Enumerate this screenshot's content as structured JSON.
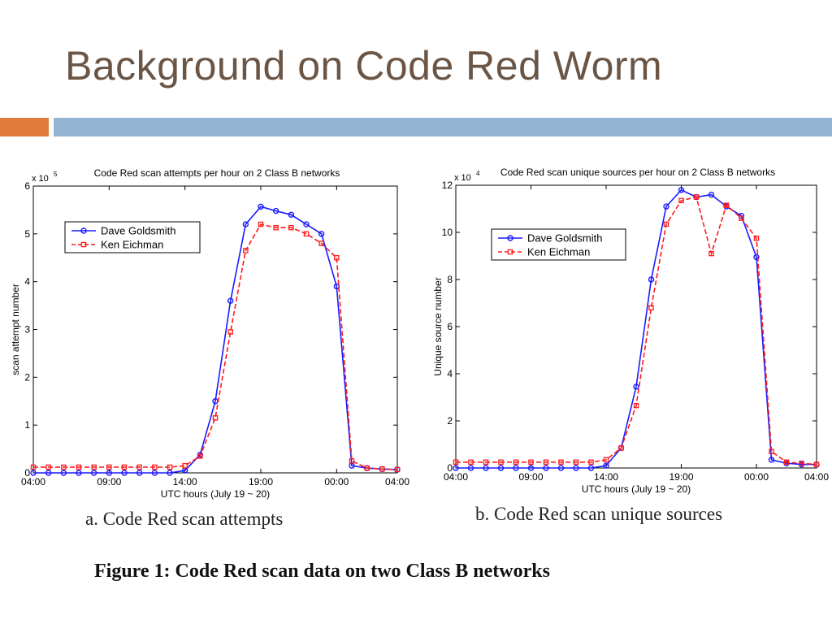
{
  "slide": {
    "title": "Background on Code Red Worm",
    "colors": {
      "title": "#6b5646",
      "accent_bar": "#e07b3c",
      "main_bar": "#94b4d4"
    }
  },
  "captions": {
    "left": "a.  Code Red scan attempts",
    "right": "b.  Code Red scan unique sources",
    "figure": "Figure 1:  Code Red scan data on two Class B networks"
  },
  "chart_data": [
    {
      "type": "line",
      "title": "Code Red scan attempts per hour on 2 Class B networks",
      "xlabel": "UTC hours (July 19 ~ 20)",
      "ylabel": "scan attempt number",
      "y_multiplier": "x 10",
      "y_exponent": "5",
      "x_ticks": [
        "04:00",
        "09:00",
        "14:00",
        "19:00",
        "00:00",
        "04:00"
      ],
      "x_tick_positions": [
        0,
        5,
        10,
        15,
        20,
        24
      ],
      "xlim": [
        0,
        24
      ],
      "y_ticks": [
        "0",
        "1",
        "2",
        "3",
        "4",
        "5",
        "6"
      ],
      "ylim": [
        0,
        6
      ],
      "grid": false,
      "legend_placement": "top-left",
      "x": [
        0,
        1,
        2,
        3,
        4,
        5,
        6,
        7,
        8,
        9,
        10,
        11,
        12,
        13,
        14,
        15,
        16,
        17,
        18,
        19,
        20,
        21,
        22,
        23,
        24
      ],
      "series": [
        {
          "name": "Dave Goldsmith",
          "color": "#1a1aff",
          "style": "solid",
          "marker": "circle",
          "values": [
            0,
            0,
            0,
            0,
            0,
            0,
            0,
            0,
            0,
            0,
            0.05,
            0.38,
            1.5,
            3.6,
            5.2,
            5.57,
            5.48,
            5.4,
            5.2,
            5.0,
            3.9,
            0.15,
            0.1,
            0.08,
            0.07
          ]
        },
        {
          "name": "Ken Eichman",
          "color": "#ff1a1a",
          "style": "dashed",
          "marker": "square",
          "values": [
            0.12,
            0.12,
            0.12,
            0.12,
            0.12,
            0.12,
            0.12,
            0.12,
            0.12,
            0.12,
            0.15,
            0.35,
            1.15,
            2.95,
            4.65,
            5.2,
            5.13,
            5.13,
            5.0,
            4.8,
            4.5,
            0.25,
            0.1,
            0.08,
            0.07
          ]
        }
      ]
    },
    {
      "type": "line",
      "title": "Code Red scan unique sources per hour on 2 Class B networks",
      "xlabel": "UTC hours (July 19 ~ 20)",
      "ylabel": "Unique source number",
      "y_multiplier": "x 10",
      "y_exponent": "4",
      "x_ticks": [
        "04:00",
        "09:00",
        "14:00",
        "19:00",
        "00:00",
        "04:00"
      ],
      "x_tick_positions": [
        0,
        5,
        10,
        15,
        20,
        24
      ],
      "xlim": [
        0,
        24
      ],
      "y_ticks": [
        "0",
        "2",
        "4",
        "6",
        "8",
        "10",
        "12"
      ],
      "ylim": [
        0,
        12
      ],
      "grid": false,
      "legend_placement": "top-left",
      "x": [
        0,
        1,
        2,
        3,
        4,
        5,
        6,
        7,
        8,
        9,
        10,
        11,
        12,
        13,
        14,
        15,
        16,
        17,
        18,
        19,
        20,
        21,
        22,
        23,
        24
      ],
      "series": [
        {
          "name": "Dave Goldsmith",
          "color": "#1a1aff",
          "style": "solid",
          "marker": "circle",
          "values": [
            0,
            0,
            0,
            0,
            0,
            0,
            0,
            0,
            0,
            0,
            0.1,
            0.85,
            3.45,
            8.0,
            11.1,
            11.8,
            11.5,
            11.6,
            11.1,
            10.7,
            8.95,
            0.35,
            0.2,
            0.15,
            0.15
          ]
        },
        {
          "name": "Ken Eichman",
          "color": "#ff1a1a",
          "style": "dashed",
          "marker": "square",
          "values": [
            0.25,
            0.25,
            0.25,
            0.25,
            0.25,
            0.25,
            0.25,
            0.25,
            0.25,
            0.25,
            0.35,
            0.85,
            2.65,
            6.8,
            10.35,
            11.35,
            11.5,
            9.1,
            11.15,
            10.6,
            9.75,
            0.7,
            0.25,
            0.2,
            0.15
          ]
        }
      ]
    }
  ]
}
